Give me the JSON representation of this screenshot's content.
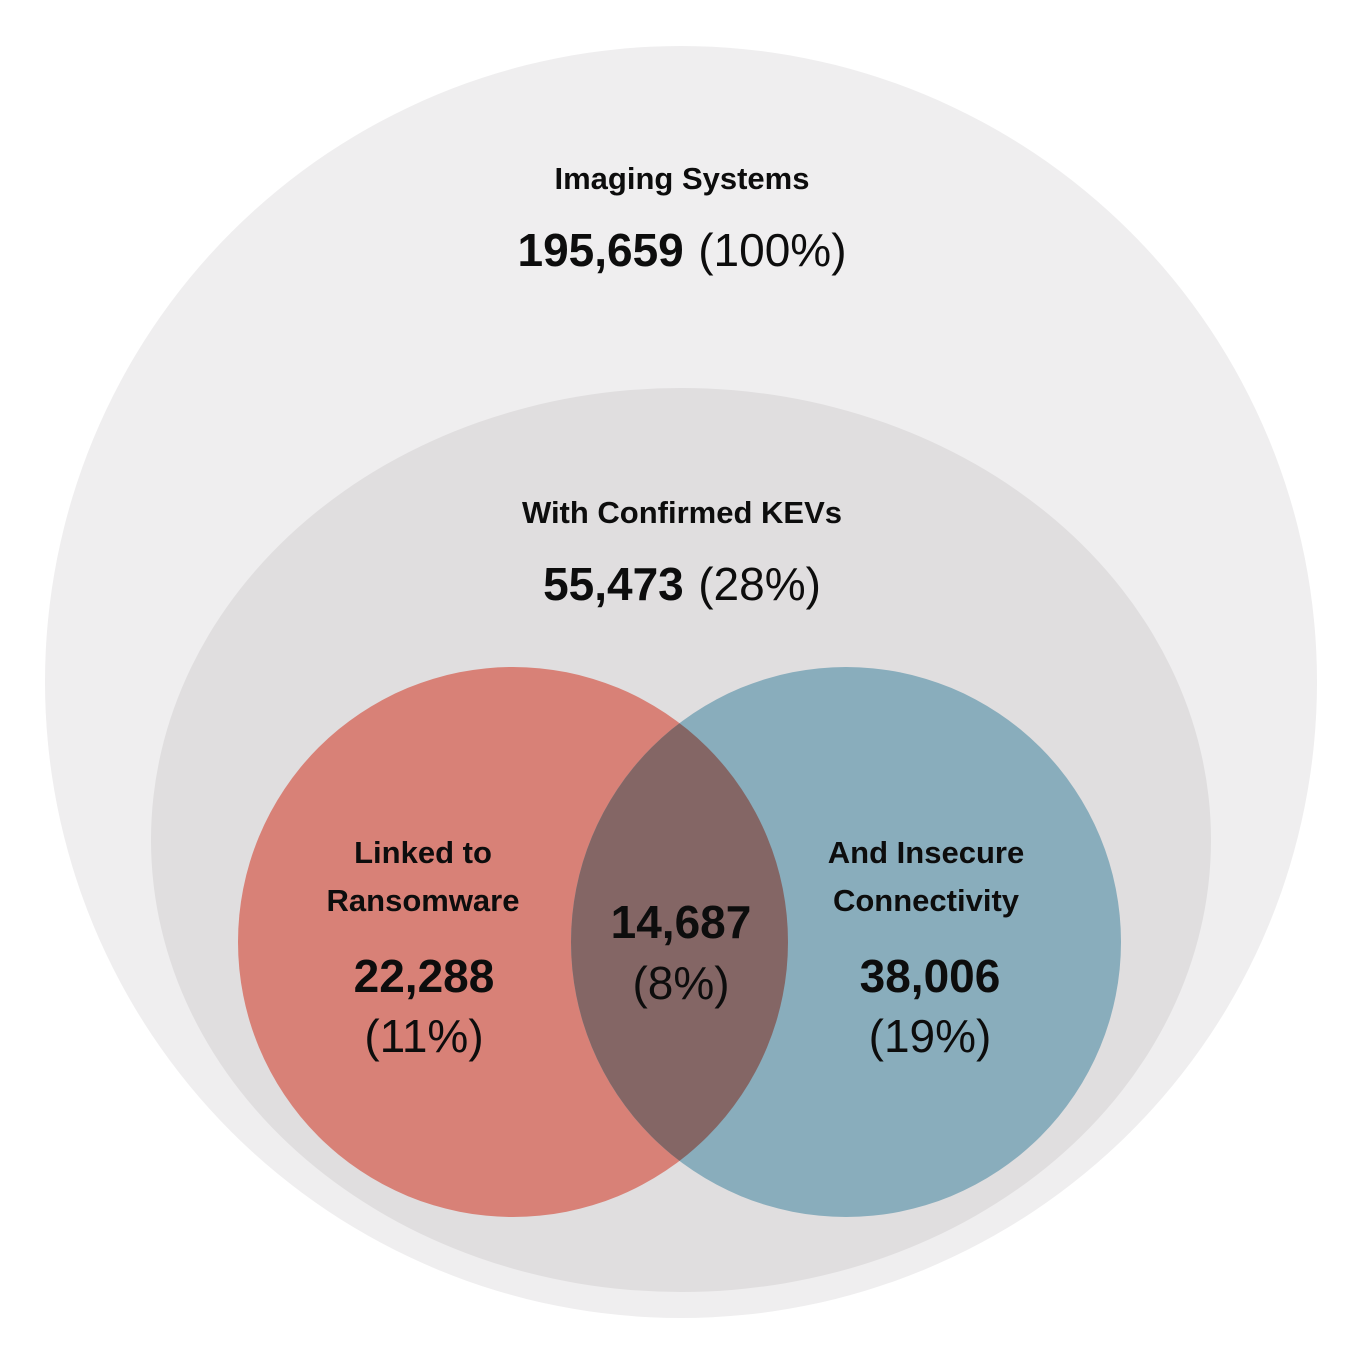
{
  "diagram": {
    "type": "nested-venn",
    "colors": {
      "background": "#ffffff",
      "outer": "#efeeef",
      "kev": "#e0dedf",
      "ransomware": "#d88177",
      "connectivity": "#89adbc",
      "overlap": "#846665",
      "text": "#0d0d0d"
    },
    "outer": {
      "title": "Imaging Systems",
      "count": "195,659",
      "percent": "(100%)"
    },
    "kev": {
      "title": "With Confirmed KEVs",
      "count": "55,473",
      "percent": "(28%)"
    },
    "ransomware": {
      "title_line1": "Linked to",
      "title_line2": "Ransomware",
      "count": "22,288",
      "percent": "(11%)"
    },
    "connectivity": {
      "title_line1": "And Insecure",
      "title_line2": "Connectivity",
      "count": "38,006",
      "percent": "(19%)"
    },
    "overlap": {
      "count": "14,687",
      "percent": "(8%)"
    }
  }
}
